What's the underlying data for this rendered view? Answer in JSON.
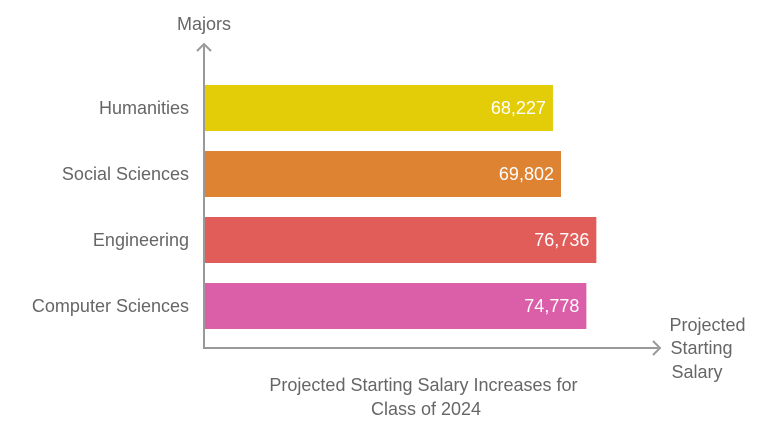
{
  "chart_data": {
    "type": "bar",
    "orientation": "horizontal",
    "categories": [
      "Humanities",
      "Social Sciences",
      "Engineering",
      "Computer Sciences"
    ],
    "values": [
      68227,
      69802,
      76736,
      74778
    ],
    "data_labels": [
      "68,227",
      "69,802",
      "76,736",
      "74,778"
    ],
    "colors": [
      "#e3cd08",
      "#dd8332",
      "#e15d5a",
      "#db5ea8"
    ],
    "title_lines": [
      "Projected Starting Salary Increases for",
      "Class of 2024"
    ],
    "ylabel": "Majors",
    "xlabel_lines": [
      "Projected",
      "Starting",
      "Salary"
    ],
    "xlim": [
      0,
      90000
    ],
    "grid": false,
    "axis_color": "#999999",
    "text_color": "#666666"
  }
}
